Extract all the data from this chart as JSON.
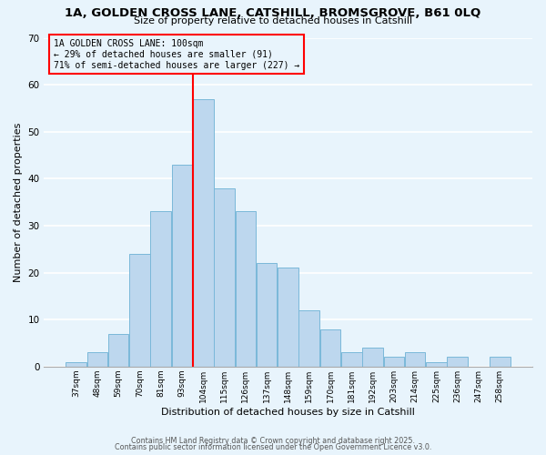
{
  "title1": "1A, GOLDEN CROSS LANE, CATSHILL, BROMSGROVE, B61 0LQ",
  "title2": "Size of property relative to detached houses in Catshill",
  "xlabel": "Distribution of detached houses by size in Catshill",
  "ylabel": "Number of detached properties",
  "bar_labels": [
    "37sqm",
    "48sqm",
    "59sqm",
    "70sqm",
    "81sqm",
    "93sqm",
    "104sqm",
    "115sqm",
    "126sqm",
    "137sqm",
    "148sqm",
    "159sqm",
    "170sqm",
    "181sqm",
    "192sqm",
    "203sqm",
    "214sqm",
    "225sqm",
    "236sqm",
    "247sqm",
    "258sqm"
  ],
  "bar_heights": [
    1,
    3,
    7,
    24,
    33,
    43,
    57,
    38,
    33,
    22,
    21,
    12,
    8,
    3,
    4,
    2,
    3,
    1,
    2,
    0,
    2
  ],
  "bar_color": "#BDD7EE",
  "bar_edge_color": "#7ab8d9",
  "vline_color": "red",
  "vline_index": 6,
  "annotation_title": "1A GOLDEN CROSS LANE: 100sqm",
  "annotation_line1": "← 29% of detached houses are smaller (91)",
  "annotation_line2": "71% of semi-detached houses are larger (227) →",
  "annotation_box_edge_color": "red",
  "ylim": [
    0,
    70
  ],
  "yticks": [
    0,
    10,
    20,
    30,
    40,
    50,
    60,
    70
  ],
  "footer1": "Contains HM Land Registry data © Crown copyright and database right 2025.",
  "footer2": "Contains public sector information licensed under the Open Government Licence v3.0.",
  "bg_color": "#e8f4fc",
  "grid_color": "white"
}
